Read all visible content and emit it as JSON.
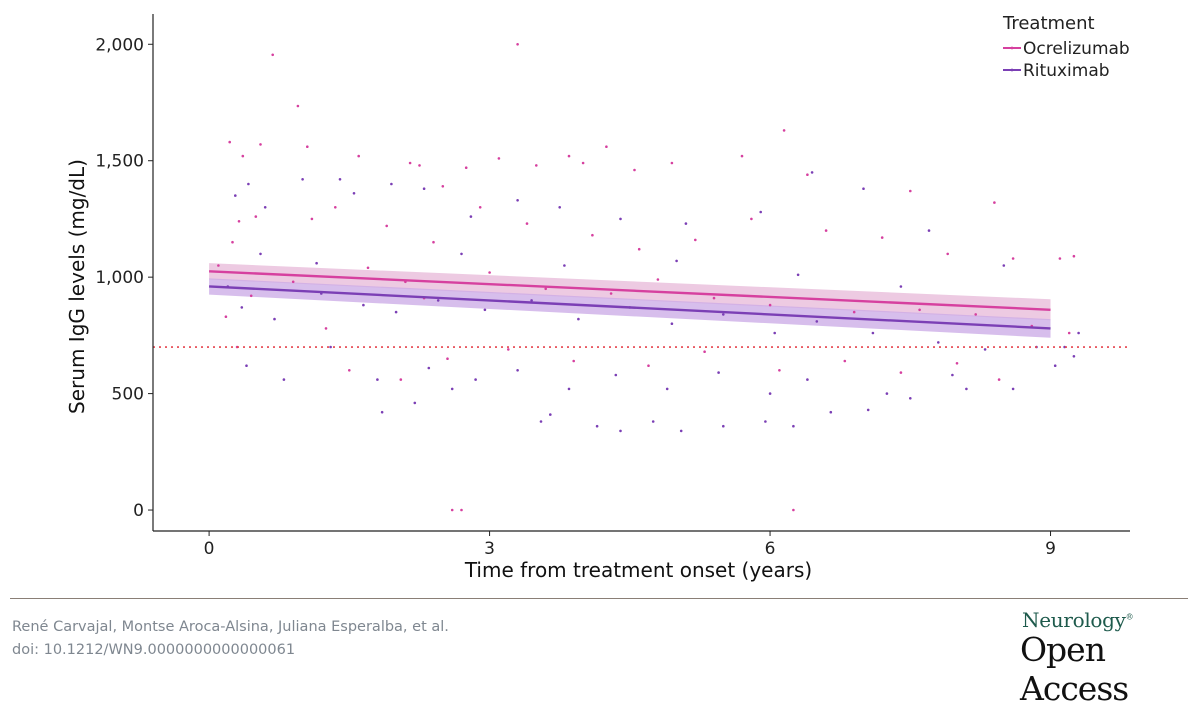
{
  "chart_data": {
    "type": "scatter",
    "title": "",
    "xlabel": "Time from treatment onset (years)",
    "ylabel": "Serum IgG levels (mg/dL)",
    "xlim": [
      -0.6,
      9.85
    ],
    "ylim": [
      -90,
      2130
    ],
    "x_ticks": [
      0,
      3,
      6,
      9
    ],
    "x_tick_labels": [
      "0",
      "3",
      "6",
      "9"
    ],
    "y_ticks": [
      0,
      500,
      1000,
      1500,
      2000
    ],
    "y_tick_labels": [
      "0",
      "500",
      "1,000",
      "1,500",
      "2,000"
    ],
    "grid": false,
    "legend": {
      "title": "Treatment",
      "position": "top-right"
    },
    "reference_line": {
      "y": 700,
      "style": "dotted",
      "color": "#e6434d"
    },
    "series": [
      {
        "name": "Ocrelizumab",
        "color": "#d6409f",
        "band_color": "#e7b8d8",
        "trend": {
          "x": [
            0,
            9
          ],
          "y": [
            1025,
            860
          ]
        },
        "ci": {
          "lower": [
            990,
            815
          ],
          "upper": [
            1060,
            905
          ]
        },
        "points": [
          [
            0.22,
            1580
          ],
          [
            0.32,
            1240
          ],
          [
            0.36,
            1520
          ],
          [
            0.5,
            1260
          ],
          [
            0.55,
            1570
          ],
          [
            0.68,
            1955
          ],
          [
            0.95,
            1735
          ],
          [
            1.05,
            1560
          ],
          [
            1.6,
            1520
          ],
          [
            2.15,
            1490
          ],
          [
            2.25,
            1480
          ],
          [
            2.5,
            1390
          ],
          [
            2.75,
            1470
          ],
          [
            3.1,
            1510
          ],
          [
            3.3,
            2000
          ],
          [
            3.5,
            1480
          ],
          [
            3.85,
            1520
          ],
          [
            4.0,
            1490
          ],
          [
            4.25,
            1560
          ],
          [
            4.55,
            1460
          ],
          [
            4.95,
            1490
          ],
          [
            5.7,
            1520
          ],
          [
            6.15,
            1630
          ],
          [
            6.4,
            1440
          ],
          [
            7.5,
            1370
          ],
          [
            8.4,
            1320
          ],
          [
            2.6,
            0
          ],
          [
            2.7,
            0
          ],
          [
            6.25,
            0
          ],
          [
            0.25,
            1150
          ],
          [
            0.3,
            700
          ],
          [
            1.1,
            1250
          ],
          [
            1.35,
            1300
          ],
          [
            1.9,
            1220
          ],
          [
            2.4,
            1150
          ],
          [
            2.9,
            1300
          ],
          [
            3.4,
            1230
          ],
          [
            4.1,
            1180
          ],
          [
            4.6,
            1120
          ],
          [
            5.2,
            1160
          ],
          [
            5.8,
            1250
          ],
          [
            6.6,
            1200
          ],
          [
            7.2,
            1170
          ],
          [
            7.9,
            1100
          ],
          [
            8.6,
            1080
          ],
          [
            9.1,
            1080
          ],
          [
            9.25,
            1090
          ],
          [
            0.1,
            1050
          ],
          [
            0.18,
            830
          ],
          [
            0.45,
            920
          ],
          [
            0.9,
            980
          ],
          [
            1.7,
            1040
          ],
          [
            2.1,
            980
          ],
          [
            2.3,
            910
          ],
          [
            3.0,
            1020
          ],
          [
            3.6,
            950
          ],
          [
            4.3,
            930
          ],
          [
            4.8,
            990
          ],
          [
            5.4,
            910
          ],
          [
            6.0,
            880
          ],
          [
            6.9,
            850
          ],
          [
            7.6,
            860
          ],
          [
            8.2,
            840
          ],
          [
            8.8,
            790
          ],
          [
            9.2,
            760
          ],
          [
            1.25,
            780
          ],
          [
            1.5,
            600
          ],
          [
            2.05,
            560
          ],
          [
            2.55,
            650
          ],
          [
            3.2,
            690
          ],
          [
            3.9,
            640
          ],
          [
            4.7,
            620
          ],
          [
            5.3,
            680
          ],
          [
            6.1,
            600
          ],
          [
            6.8,
            640
          ],
          [
            7.4,
            590
          ],
          [
            8.0,
            630
          ],
          [
            8.45,
            560
          ]
        ]
      },
      {
        "name": "Rituximab",
        "color": "#7b3fb5",
        "band_color": "#c9a8e6",
        "trend": {
          "x": [
            0,
            9
          ],
          "y": [
            960,
            780
          ]
        },
        "ci": {
          "lower": [
            925,
            740
          ],
          "upper": [
            995,
            820
          ]
        },
        "points": [
          [
            0.28,
            1350
          ],
          [
            0.42,
            1400
          ],
          [
            0.6,
            1300
          ],
          [
            1.0,
            1420
          ],
          [
            1.4,
            1420
          ],
          [
            1.55,
            1360
          ],
          [
            1.95,
            1400
          ],
          [
            2.3,
            1380
          ],
          [
            2.8,
            1260
          ],
          [
            3.3,
            1330
          ],
          [
            3.75,
            1300
          ],
          [
            4.4,
            1250
          ],
          [
            5.1,
            1230
          ],
          [
            5.9,
            1280
          ],
          [
            6.45,
            1450
          ],
          [
            7.0,
            1380
          ],
          [
            7.7,
            1200
          ],
          [
            8.5,
            1050
          ],
          [
            1.85,
            420
          ],
          [
            2.2,
            460
          ],
          [
            2.6,
            520
          ],
          [
            3.55,
            380
          ],
          [
            3.65,
            410
          ],
          [
            4.15,
            360
          ],
          [
            4.4,
            340
          ],
          [
            4.75,
            380
          ],
          [
            5.05,
            340
          ],
          [
            5.5,
            360
          ],
          [
            5.95,
            380
          ],
          [
            6.25,
            360
          ],
          [
            6.65,
            420
          ],
          [
            7.05,
            430
          ],
          [
            7.5,
            480
          ],
          [
            8.1,
            520
          ],
          [
            9.05,
            620
          ],
          [
            9.25,
            660
          ],
          [
            0.2,
            960
          ],
          [
            0.35,
            870
          ],
          [
            0.7,
            820
          ],
          [
            1.2,
            930
          ],
          [
            1.65,
            880
          ],
          [
            2.0,
            850
          ],
          [
            2.45,
            900
          ],
          [
            2.95,
            860
          ],
          [
            3.45,
            900
          ],
          [
            3.95,
            820
          ],
          [
            4.5,
            870
          ],
          [
            4.95,
            800
          ],
          [
            5.5,
            840
          ],
          [
            6.05,
            760
          ],
          [
            6.5,
            810
          ],
          [
            7.1,
            760
          ],
          [
            7.8,
            720
          ],
          [
            8.3,
            690
          ],
          [
            8.85,
            700
          ],
          [
            0.4,
            620
          ],
          [
            0.8,
            560
          ],
          [
            1.3,
            700
          ],
          [
            1.8,
            560
          ],
          [
            2.35,
            610
          ],
          [
            2.85,
            560
          ],
          [
            3.3,
            600
          ],
          [
            3.85,
            520
          ],
          [
            4.35,
            580
          ],
          [
            4.9,
            520
          ],
          [
            5.45,
            590
          ],
          [
            6.0,
            500
          ],
          [
            6.4,
            560
          ],
          [
            7.25,
            500
          ],
          [
            7.95,
            580
          ],
          [
            8.6,
            520
          ],
          [
            9.15,
            700
          ],
          [
            9.3,
            760
          ],
          [
            0.55,
            1100
          ],
          [
            1.15,
            1060
          ],
          [
            2.7,
            1100
          ],
          [
            3.8,
            1050
          ],
          [
            5.0,
            1070
          ],
          [
            6.3,
            1010
          ],
          [
            7.4,
            960
          ]
        ]
      }
    ]
  },
  "footer": {
    "credit_authors": "René Carvajal, Montse Aroca-Alsina, Juliana Esperalba, et al.",
    "credit_doi": "doi: 10.1212/WN9.0000000000000061",
    "brand_top": "Neurology",
    "brand_reg": "®",
    "brand_bottom": "Open Access"
  }
}
